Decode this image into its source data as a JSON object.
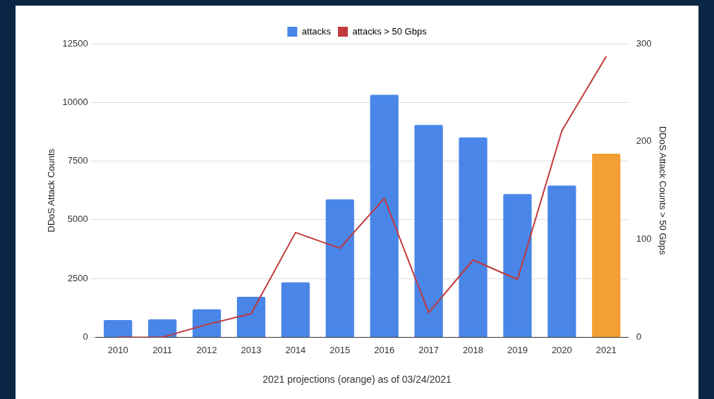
{
  "chart_data": {
    "type": "bar",
    "categories": [
      "2010",
      "2011",
      "2012",
      "2013",
      "2014",
      "2015",
      "2016",
      "2017",
      "2018",
      "2019",
      "2020",
      "2021"
    ],
    "series": [
      {
        "name": "attacks",
        "color": "#4a86e8",
        "colors": [
          "#4a86e8",
          "#4a86e8",
          "#4a86e8",
          "#4a86e8",
          "#4a86e8",
          "#4a86e8",
          "#4a86e8",
          "#4a86e8",
          "#4a86e8",
          "#4a86e8",
          "#4a86e8",
          "#f2a033"
        ],
        "values": [
          730,
          760,
          1190,
          1720,
          2340,
          5870,
          10320,
          9040,
          8510,
          6100,
          6460,
          7820
        ]
      },
      {
        "name": "attacks > 50 Gbps",
        "type": "line",
        "axis": "y2",
        "color": "#c0393b",
        "values": [
          0,
          0,
          13,
          24,
          107,
          91,
          142,
          25,
          79,
          59,
          211,
          287
        ]
      }
    ],
    "ylabel": "DDoS Attack Counts",
    "y2label": "DDoS Attack Counts > 50 Gbps",
    "ylim": [
      0,
      12500
    ],
    "yticks": [
      0,
      2500,
      5000,
      7500,
      10000,
      12500
    ],
    "y2lim": [
      0,
      300
    ],
    "y2ticks": [
      0,
      100,
      200,
      300
    ],
    "grid": "y",
    "legend": "top",
    "marker": "none",
    "annotations": [
      "2021 projections (orange) as of 03/24/2021"
    ]
  }
}
